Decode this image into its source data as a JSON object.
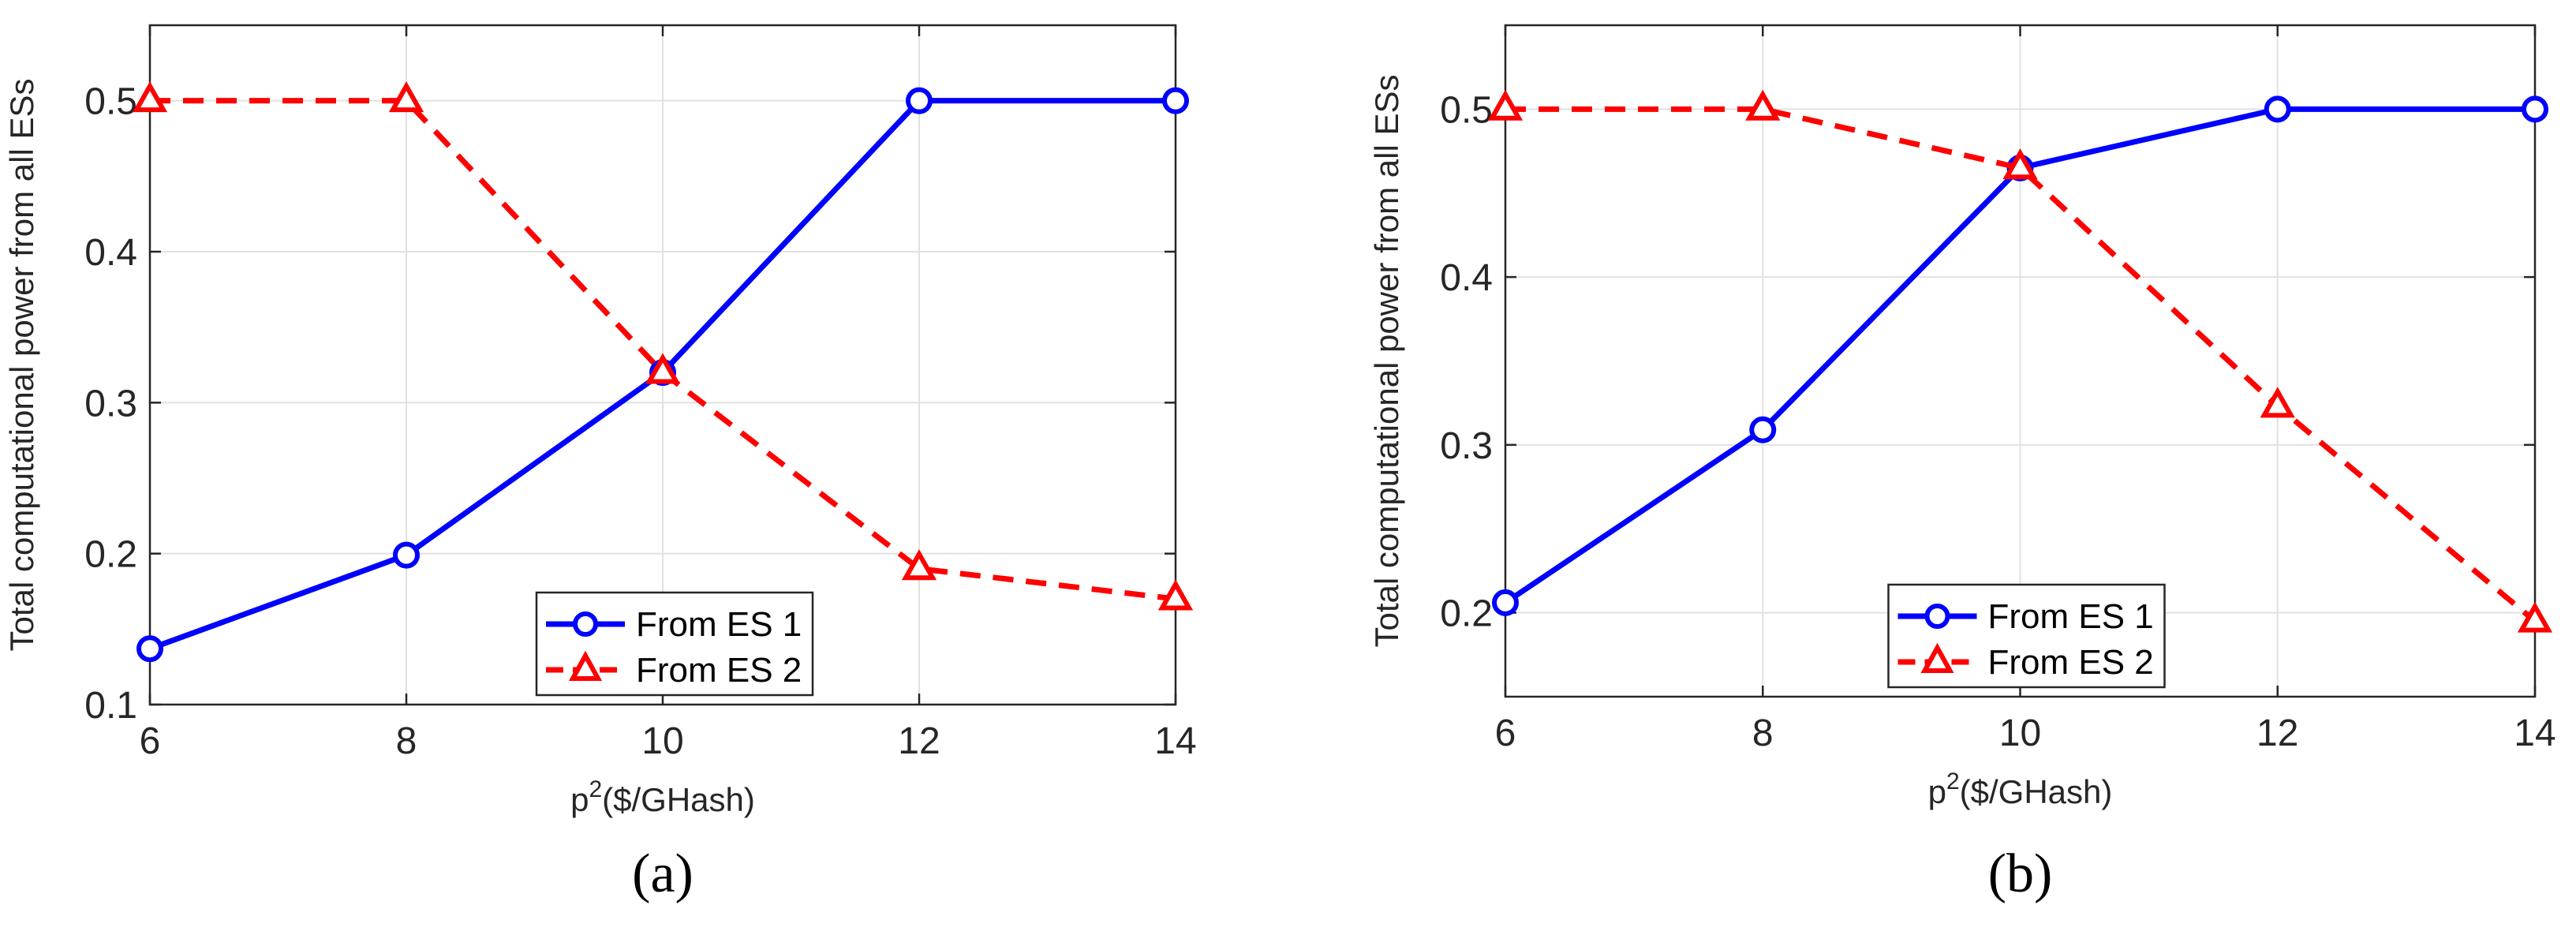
{
  "figure_labels": [
    "(a)",
    "(b)"
  ],
  "colors": {
    "series1": "#0000ff",
    "series2": "#ff0000",
    "grid": "#e1e1e1",
    "axis": "#262626"
  },
  "chart_data": [
    {
      "type": "line",
      "panel": "(a)",
      "x": [
        6,
        8,
        10,
        12,
        14
      ],
      "xlabel": "p",
      "xlabel_sup": "2",
      "xlabel_rest": "($/GHash)",
      "ylabel": "Total computational power from all ESs",
      "xlim": [
        6,
        14
      ],
      "ylim": [
        0.1,
        0.55
      ],
      "xticks": [
        6,
        8,
        10,
        12,
        14
      ],
      "yticks": [
        0.1,
        0.2,
        0.3,
        0.4,
        0.5
      ],
      "ytick_labels": [
        "0.1",
        "0.2",
        "0.3",
        "0.4",
        "0.5"
      ],
      "grid": true,
      "legend_position": "bottom-center",
      "series": [
        {
          "name": "From ES 1",
          "values": [
            0.137,
            0.199,
            0.32,
            0.5,
            0.5
          ],
          "color": "#0000ff",
          "dash": "solid",
          "marker": "circle"
        },
        {
          "name": "From ES 2",
          "values": [
            0.5,
            0.5,
            0.32,
            0.19,
            0.17
          ],
          "color": "#ff0000",
          "dash": "dashed",
          "marker": "triangle"
        }
      ]
    },
    {
      "type": "line",
      "panel": "(b)",
      "x": [
        6,
        8,
        10,
        12,
        14
      ],
      "xlabel": "p",
      "xlabel_sup": "2",
      "xlabel_rest": "($/GHash)",
      "ylabel": "Total computational power from all ESs",
      "xlim": [
        6,
        14
      ],
      "ylim": [
        0.15,
        0.55
      ],
      "xticks": [
        6,
        8,
        10,
        12,
        14
      ],
      "yticks": [
        0.2,
        0.3,
        0.4,
        0.5
      ],
      "ytick_labels": [
        "0.2",
        "0.3",
        "0.4",
        "0.5"
      ],
      "grid": true,
      "legend_position": "bottom-center",
      "series": [
        {
          "name": "From ES 1",
          "values": [
            0.206,
            0.309,
            0.465,
            0.5,
            0.5
          ],
          "color": "#0000ff",
          "dash": "solid",
          "marker": "circle"
        },
        {
          "name": "From ES 2",
          "values": [
            0.5,
            0.5,
            0.465,
            0.323,
            0.195
          ],
          "color": "#ff0000",
          "dash": "dashed",
          "marker": "triangle"
        }
      ]
    }
  ]
}
